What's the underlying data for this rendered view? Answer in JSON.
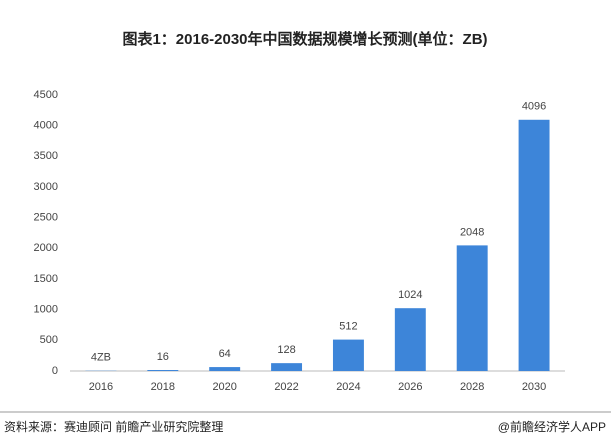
{
  "chart_data": {
    "type": "bar",
    "title": "图表1：2016-2030年中国数据规模增长预测(单位：ZB)",
    "categories": [
      "2016",
      "2018",
      "2020",
      "2022",
      "2024",
      "2026",
      "2028",
      "2030"
    ],
    "values": [
      4,
      16,
      64,
      128,
      512,
      1024,
      2048,
      4096
    ],
    "value_labels": [
      "4ZB",
      "16",
      "64",
      "128",
      "512",
      "1024",
      "2048",
      "4096"
    ],
    "color": "#3d85d9",
    "ylim": [
      0,
      4500
    ],
    "yticks": [
      0,
      500,
      1000,
      1500,
      2000,
      2500,
      3000,
      3500,
      4000,
      4500
    ],
    "grid": false
  },
  "footer": {
    "source": "资料来源：赛迪顾问 前瞻产业研究院整理",
    "brand": "@前瞻经济学人APP"
  }
}
